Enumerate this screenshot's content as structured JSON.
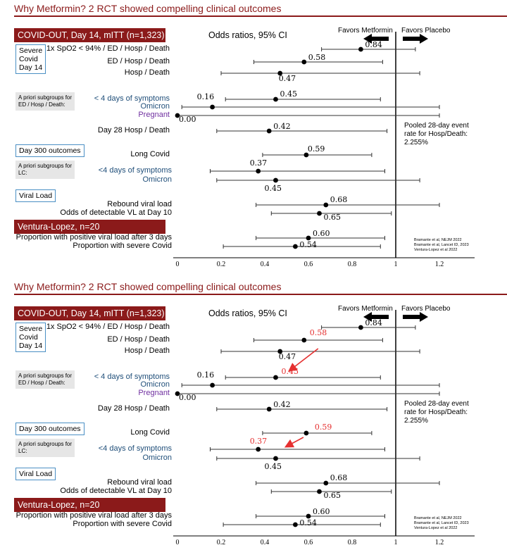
{
  "chart_data": [
    {
      "type": "scatter",
      "title": "Why Metformin? 2 RCT showed compelling clinical outcomes",
      "xlim": [
        0,
        1.2
      ],
      "x_ticks": [
        "0",
        "0.2",
        "0.4",
        "0.6",
        "0.8",
        "1",
        "1.2"
      ],
      "reference_line": 1,
      "sections": [
        {
          "label": "COVID-OUT, Day 14, mITT (n=1,323)",
          "style": "red-bar"
        },
        {
          "label": "Day 300 outcomes",
          "style": "outline-box"
        },
        {
          "label": "Viral Load",
          "style": "outline-box"
        },
        {
          "label": "Ventura-Lopez, n=20",
          "style": "red-bar"
        }
      ],
      "rows": [
        {
          "label": "1x SpO2 < 94% / ED / Hosp / Death",
          "or": 0.84,
          "ci": [
            0.66,
            1.09
          ],
          "value_label": "0.84"
        },
        {
          "label": "ED / Hosp / Death",
          "or": 0.58,
          "ci": [
            0.35,
            0.94
          ],
          "value_label": "0.58"
        },
        {
          "label": "Hosp / Death",
          "or": 0.47,
          "ci": [
            0.2,
            1.11
          ],
          "value_label": "0.47"
        },
        {
          "label": "< 4 days of symptoms",
          "or": 0.45,
          "ci": [
            0.22,
            0.93
          ],
          "value_label": "0.45"
        },
        {
          "label": "Omicron",
          "or": 0.16,
          "ci": [
            0.02,
            1.2
          ],
          "value_label": "0.16"
        },
        {
          "label": "Pregnant",
          "or": 0.0,
          "ci": [
            0.0,
            1.2
          ],
          "value_label": "0.00"
        },
        {
          "label": "Day 28 Hosp / Death",
          "or": 0.42,
          "ci": [
            0.18,
            0.96
          ],
          "value_label": "0.42"
        },
        {
          "label": "Long Covid",
          "or": 0.59,
          "ci": [
            0.39,
            0.89
          ],
          "value_label": "0.59"
        },
        {
          "label": "<4 days of symptoms",
          "or": 0.37,
          "ci": [
            0.15,
            0.95
          ],
          "value_label": "0.37"
        },
        {
          "label": "Omicron",
          "or": 0.45,
          "ci": [
            0.18,
            1.11
          ],
          "value_label": "0.45"
        },
        {
          "label": "Rebound viral load",
          "or": 0.68,
          "ci": [
            0.36,
            1.2
          ],
          "value_label": "0.68"
        },
        {
          "label": "Odds of detectable VL at Day 10",
          "or": 0.65,
          "ci": [
            0.43,
            0.98
          ],
          "value_label": "0.65"
        },
        {
          "label": "Proportion with positive viral load after 3 days",
          "or": 0.6,
          "ci": [
            0.36,
            0.95
          ],
          "value_label": "0.60"
        },
        {
          "label": "Proportion with severe Covid",
          "or": 0.54,
          "ci": [
            0.21,
            0.93
          ],
          "value_label": "0.54"
        }
      ],
      "highlighted_values": [],
      "annotation_arrows": []
    },
    {
      "type": "scatter",
      "title": "Why Metformin? 2 RCT showed compelling clinical outcomes",
      "xlim": [
        0,
        1.2
      ],
      "x_ticks": [
        "0",
        "0.2",
        "0.4",
        "0.6",
        "0.8",
        "1",
        "1.2"
      ],
      "reference_line": 1,
      "rows": [
        {
          "label": "1x SpO2 < 94% / ED / Hosp / Death",
          "or": 0.84,
          "ci": [
            0.66,
            1.09
          ],
          "value_label": "0.84"
        },
        {
          "label": "ED / Hosp / Death",
          "or": 0.58,
          "ci": [
            0.35,
            0.94
          ],
          "value_label": "0.58",
          "highlight": true
        },
        {
          "label": "Hosp / Death",
          "or": 0.47,
          "ci": [
            0.2,
            1.11
          ],
          "value_label": "0.47"
        },
        {
          "label": "< 4 days of symptoms",
          "or": 0.45,
          "ci": [
            0.22,
            0.93
          ],
          "value_label": "0.45",
          "highlight": true
        },
        {
          "label": "Omicron",
          "or": 0.16,
          "ci": [
            0.02,
            1.2
          ],
          "value_label": "0.16"
        },
        {
          "label": "Pregnant",
          "or": 0.0,
          "ci": [
            0.0,
            1.2
          ],
          "value_label": "0.00"
        },
        {
          "label": "Day 28 Hosp / Death",
          "or": 0.42,
          "ci": [
            0.18,
            0.96
          ],
          "value_label": "0.42"
        },
        {
          "label": "Long Covid",
          "or": 0.59,
          "ci": [
            0.39,
            0.89
          ],
          "value_label": "0.59",
          "highlight": true
        },
        {
          "label": "<4 days of symptoms",
          "or": 0.37,
          "ci": [
            0.15,
            0.95
          ],
          "value_label": "0.37",
          "highlight": true
        },
        {
          "label": "Omicron",
          "or": 0.45,
          "ci": [
            0.18,
            1.11
          ],
          "value_label": "0.45"
        },
        {
          "label": "Rebound viral load",
          "or": 0.68,
          "ci": [
            0.36,
            1.2
          ],
          "value_label": "0.68"
        },
        {
          "label": "Odds of detectable VL at Day 10",
          "or": 0.65,
          "ci": [
            0.43,
            0.98
          ],
          "value_label": "0.65"
        },
        {
          "label": "Proportion with positive viral load after 3 days",
          "or": 0.6,
          "ci": [
            0.36,
            0.95
          ],
          "value_label": "0.60"
        },
        {
          "label": "Proportion with severe Covid",
          "or": 0.54,
          "ci": [
            0.21,
            0.93
          ],
          "value_label": "0.54"
        }
      ],
      "annotation_arrows": [
        {
          "from": "0.58",
          "to": "0.45",
          "color": "#e53030"
        },
        {
          "from": "0.59",
          "to": "0.37",
          "color": "#e53030"
        }
      ]
    }
  ],
  "text": {
    "title": "Why Metformin? 2 RCT showed compelling clinical outcomes",
    "covid_out": "COVID-OUT, Day 14, mITT (n=1,323)",
    "odds_ratios": "Odds ratios, 95% CI",
    "favors_metformin": "Favors Metformin",
    "favors_placebo": "Favors Placebo",
    "severe_box": [
      "Severe",
      "Covid",
      "Day 14"
    ],
    "subgroups_ed": [
      "A priori subgroups for",
      "ED / Hosp / Death:"
    ],
    "pooled": [
      "Pooled 28-day event",
      "rate for Hosp/Death:",
      "2.255%"
    ],
    "day300": "Day 300 outcomes",
    "subgroups_lc": [
      "A priori subgroups for",
      "LC:"
    ],
    "viral_load": "Viral Load",
    "ventura": "Ventura-Lopez, n=20",
    "citations": [
      "Bramante et al, NEJM 2022",
      "Bramante et al, Lancet ID, 2023",
      "Ventura-Lopez et al 2022"
    ],
    "row_labels": [
      "1x SpO2 < 94% / ED / Hosp / Death",
      "ED / Hosp / Death",
      "Hosp / Death",
      "< 4 days of symptoms",
      "Omicron",
      "Pregnant",
      "Day 28 Hosp / Death",
      "Long Covid",
      "<4 days of symptoms",
      "Omicron",
      "Rebound viral load",
      "Odds of detectable VL at Day 10",
      "Proportion with positive viral load after 3 days",
      "Proportion with severe Covid"
    ],
    "value_labels": [
      "0.84",
      "0.58",
      "0.47",
      "0.45",
      "0.16",
      "0.00",
      "0.42",
      "0.59",
      "0.37",
      "0.45",
      "0.68",
      "0.65",
      "0.60",
      "0.54"
    ]
  },
  "colors": {
    "brand_red": "#8b1a1a",
    "highlight_red": "#e53030",
    "blue_label": "#1f4e79",
    "purple_label": "#7030a0",
    "box_border": "#4a8fc4",
    "gray_box": "#e6e6e6"
  }
}
